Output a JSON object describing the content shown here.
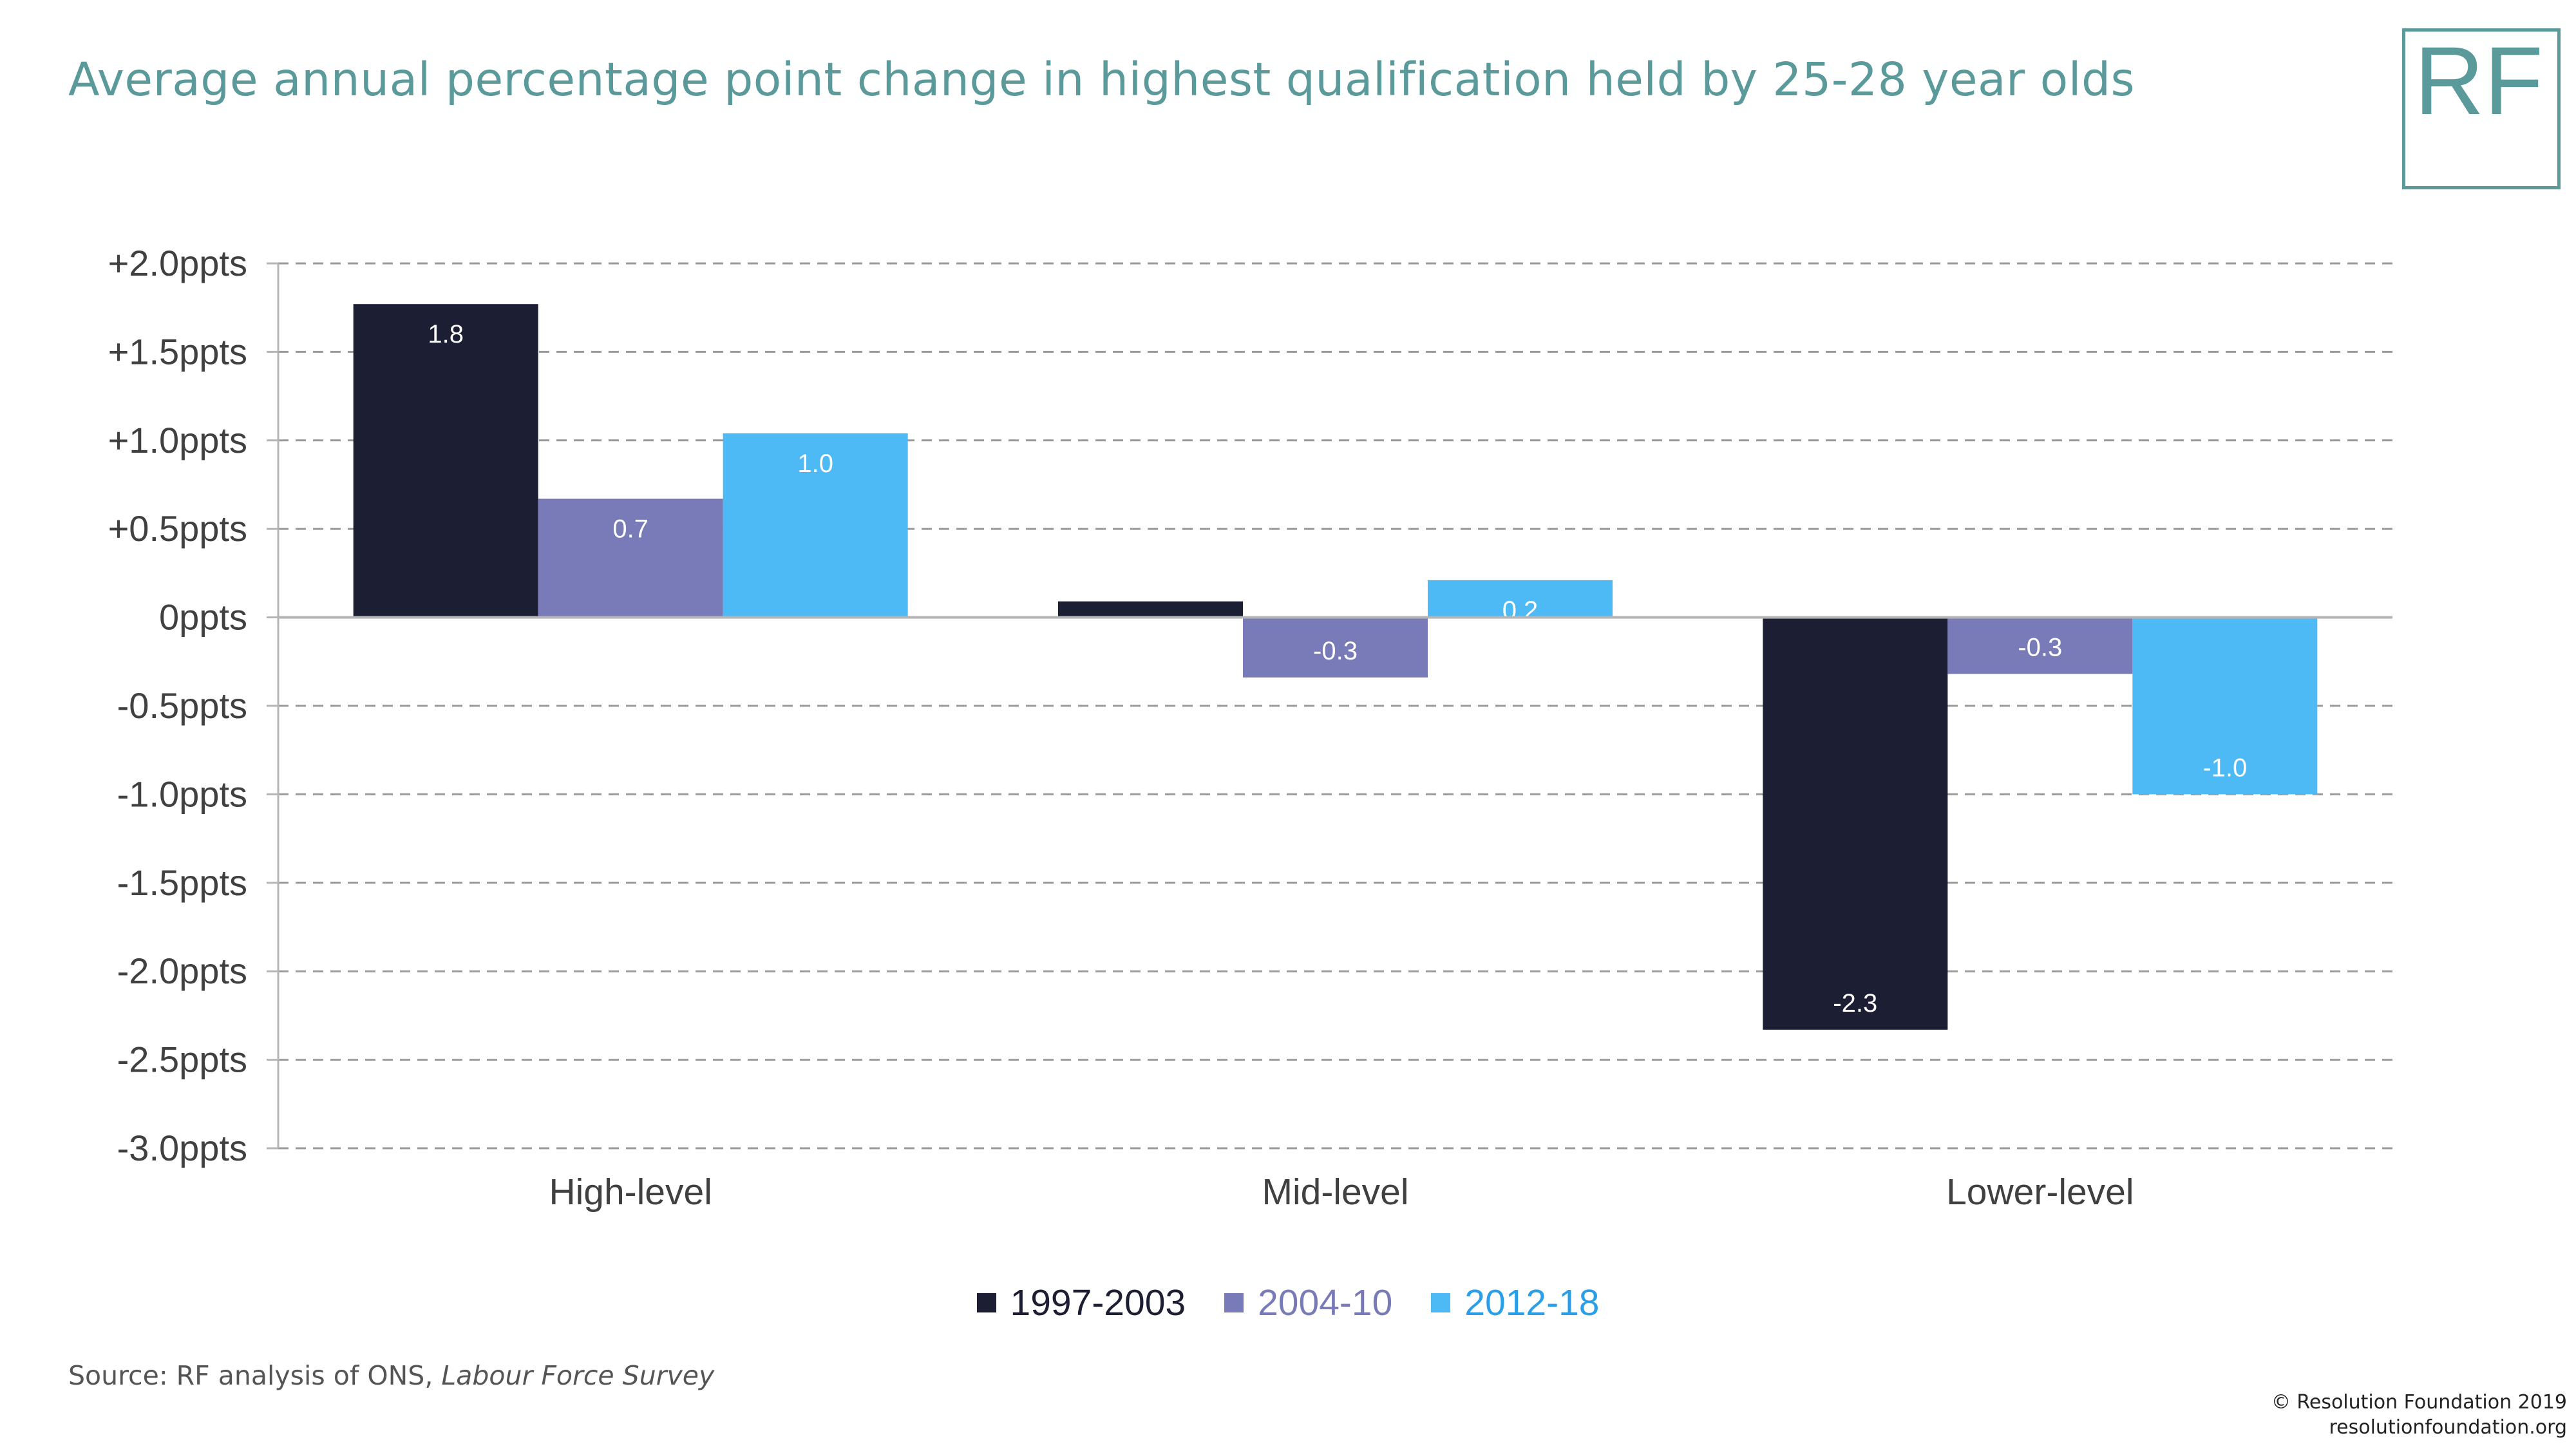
{
  "title": "Average annual percentage point change in highest qualification held by 25-28 year olds",
  "logo": "RF",
  "chart_data": {
    "type": "bar",
    "title": "Average annual percentage point change in highest qualification held by 25-28 year olds",
    "categories": [
      "High-level",
      "Mid-level",
      "Lower-level"
    ],
    "series": [
      {
        "name": "1997-2003",
        "color": "#1c1e34",
        "values": [
          1.77,
          0.09,
          -2.33
        ],
        "labels": [
          "1.8",
          "",
          "-2.3"
        ]
      },
      {
        "name": "2004-10",
        "color": "#787bb8",
        "values": [
          0.67,
          -0.34,
          -0.32
        ],
        "labels": [
          "0.7",
          "-0.3",
          "-0.3"
        ]
      },
      {
        "name": "2012-18",
        "color": "#4ebaf5",
        "values": [
          1.04,
          0.21,
          -1.0
        ],
        "labels": [
          "1.0",
          "0.2",
          "-1.0"
        ]
      }
    ],
    "ylim": [
      -3.0,
      2.0
    ],
    "yticks": [
      2.0,
      1.5,
      1.0,
      0.5,
      0,
      -0.5,
      -1.0,
      -1.5,
      -2.0,
      -2.5,
      -3.0
    ],
    "ytick_labels": [
      "+2.0ppts",
      "+1.5ppts",
      "+1.0ppts",
      "+0.5ppts",
      "0ppts",
      "-0.5ppts",
      "-1.0ppts",
      "-1.5ppts",
      "-2.0ppts",
      "-2.5ppts",
      "-3.0ppts"
    ],
    "grid": true,
    "legend_position": "bottom",
    "xlabel": "",
    "ylabel": ""
  },
  "source": {
    "prefix": "Source: RF analysis of ONS, ",
    "italic": "Labour Force Survey"
  },
  "credit": {
    "line1": "© Resolution Foundation 2019",
    "line2": "resolutionfoundation.org"
  }
}
